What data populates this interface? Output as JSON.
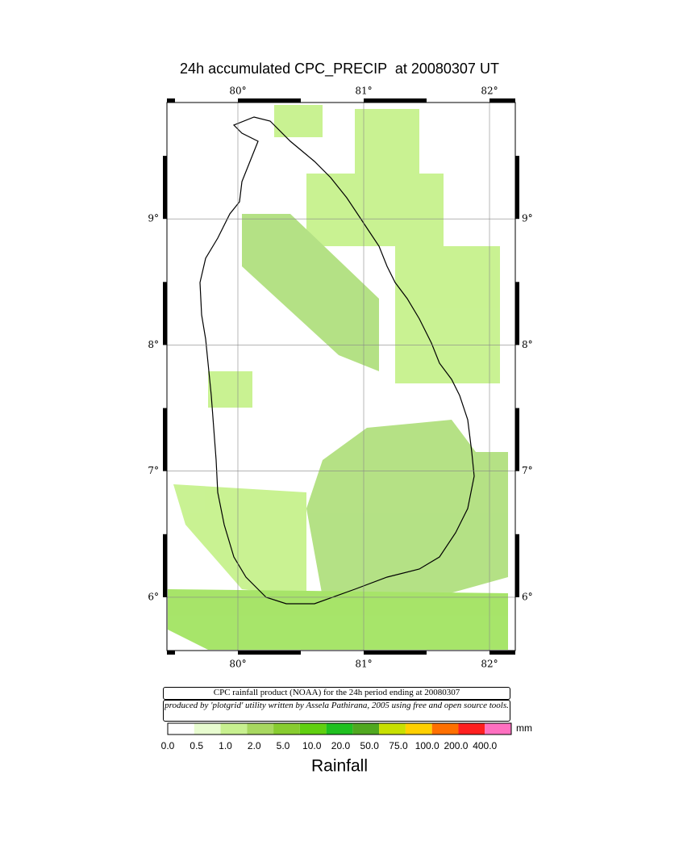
{
  "title": "24h accumulated CPC_PRECIP  at 20080307 UT",
  "map": {
    "xlim": [
      79.436,
      82.205
    ],
    "ylim": [
      5.577,
      9.923
    ],
    "xticks": [
      {
        "value": 80,
        "label": "80°"
      },
      {
        "value": 81,
        "label": "81°"
      },
      {
        "value": 82,
        "label": "82°"
      }
    ],
    "yticks": [
      {
        "value": 9,
        "label": "9°"
      },
      {
        "value": 8,
        "label": "8°"
      },
      {
        "value": 7,
        "label": "7°"
      },
      {
        "value": 6,
        "label": "6°"
      }
    ]
  },
  "info": {
    "line1": "CPC rainfall product (NOAA) for the 24h period ending at 20080307",
    "line2": "produced by 'plotgrid' utility written by Assela Pathirana, 2005 using free and open source tools."
  },
  "legend": {
    "unit": "mm",
    "title": "Rainfall",
    "labels": [
      "0.0",
      "0.5",
      "1.0",
      "2.0",
      "5.0",
      "10.0",
      "20.0",
      "50.0",
      "75.0",
      "100.0",
      "200.0",
      "400.0"
    ],
    "colors": [
      "#ffffff",
      "#e8fcd0",
      "#c8f090",
      "#a8d860",
      "#88cc30",
      "#60d010",
      "#20c020",
      "#50a820",
      "#c8e000",
      "#ffd000",
      "#ff7000",
      "#ff2020",
      "#ff70c0"
    ]
  }
}
